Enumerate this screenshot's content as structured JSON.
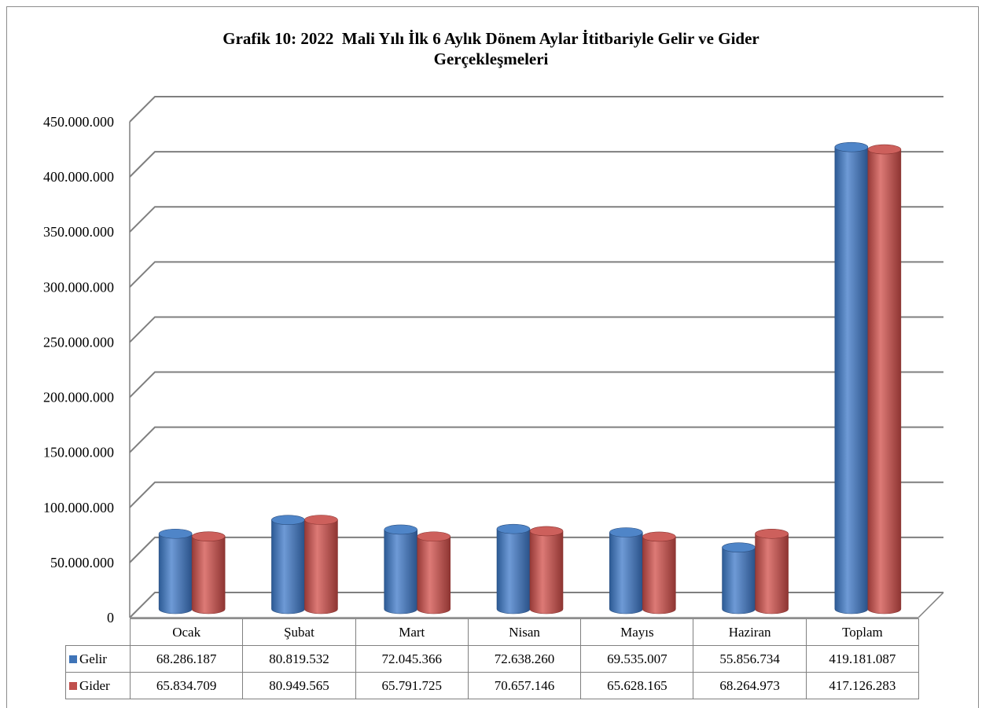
{
  "colors": {
    "gelir": "#3f74b8",
    "gider": "#c0504d",
    "grid": "#7f7f7f"
  },
  "chart_data": {
    "type": "bar",
    "title_line1": "Grafik 10: 2022  Mali Yılı İlk 6 Aylık Dönem Aylar İtitbariyle Gelir ve Gider",
    "title_line2": "Gerçekleşmeleri",
    "categories": [
      "Ocak",
      "Şubat",
      "Mart",
      "Nisan",
      "Mayıs",
      "Haziran",
      "Toplam"
    ],
    "series": [
      {
        "name": "Gelir",
        "values": [
          68286187,
          80819532,
          72045366,
          72638260,
          69535007,
          55856734,
          419181087
        ],
        "labels": [
          "68.286.187",
          "80.819.532",
          "72.045.366",
          "72.638.260",
          "69.535.007",
          "55.856.734",
          "419.181.087"
        ]
      },
      {
        "name": "Gider",
        "values": [
          65834709,
          80949565,
          65791725,
          70657146,
          65628165,
          68264973,
          417126283
        ],
        "labels": [
          "65.834.709",
          "80.949.565",
          "65.791.725",
          "70.657.146",
          "65.628.165",
          "68.264.973",
          "417.126.283"
        ]
      }
    ],
    "ylim": [
      0,
      450000000
    ],
    "yticks": [
      0,
      50000000,
      100000000,
      150000000,
      200000000,
      250000000,
      300000000,
      350000000,
      400000000,
      450000000
    ],
    "ytick_labels": [
      "0",
      "50.000.000",
      "100.000.000",
      "150.000.000",
      "200.000.000",
      "250.000.000",
      "300.000.000",
      "350.000.000",
      "400.000.000",
      "450.000.000"
    ],
    "grid": true,
    "legend": "data-table"
  }
}
